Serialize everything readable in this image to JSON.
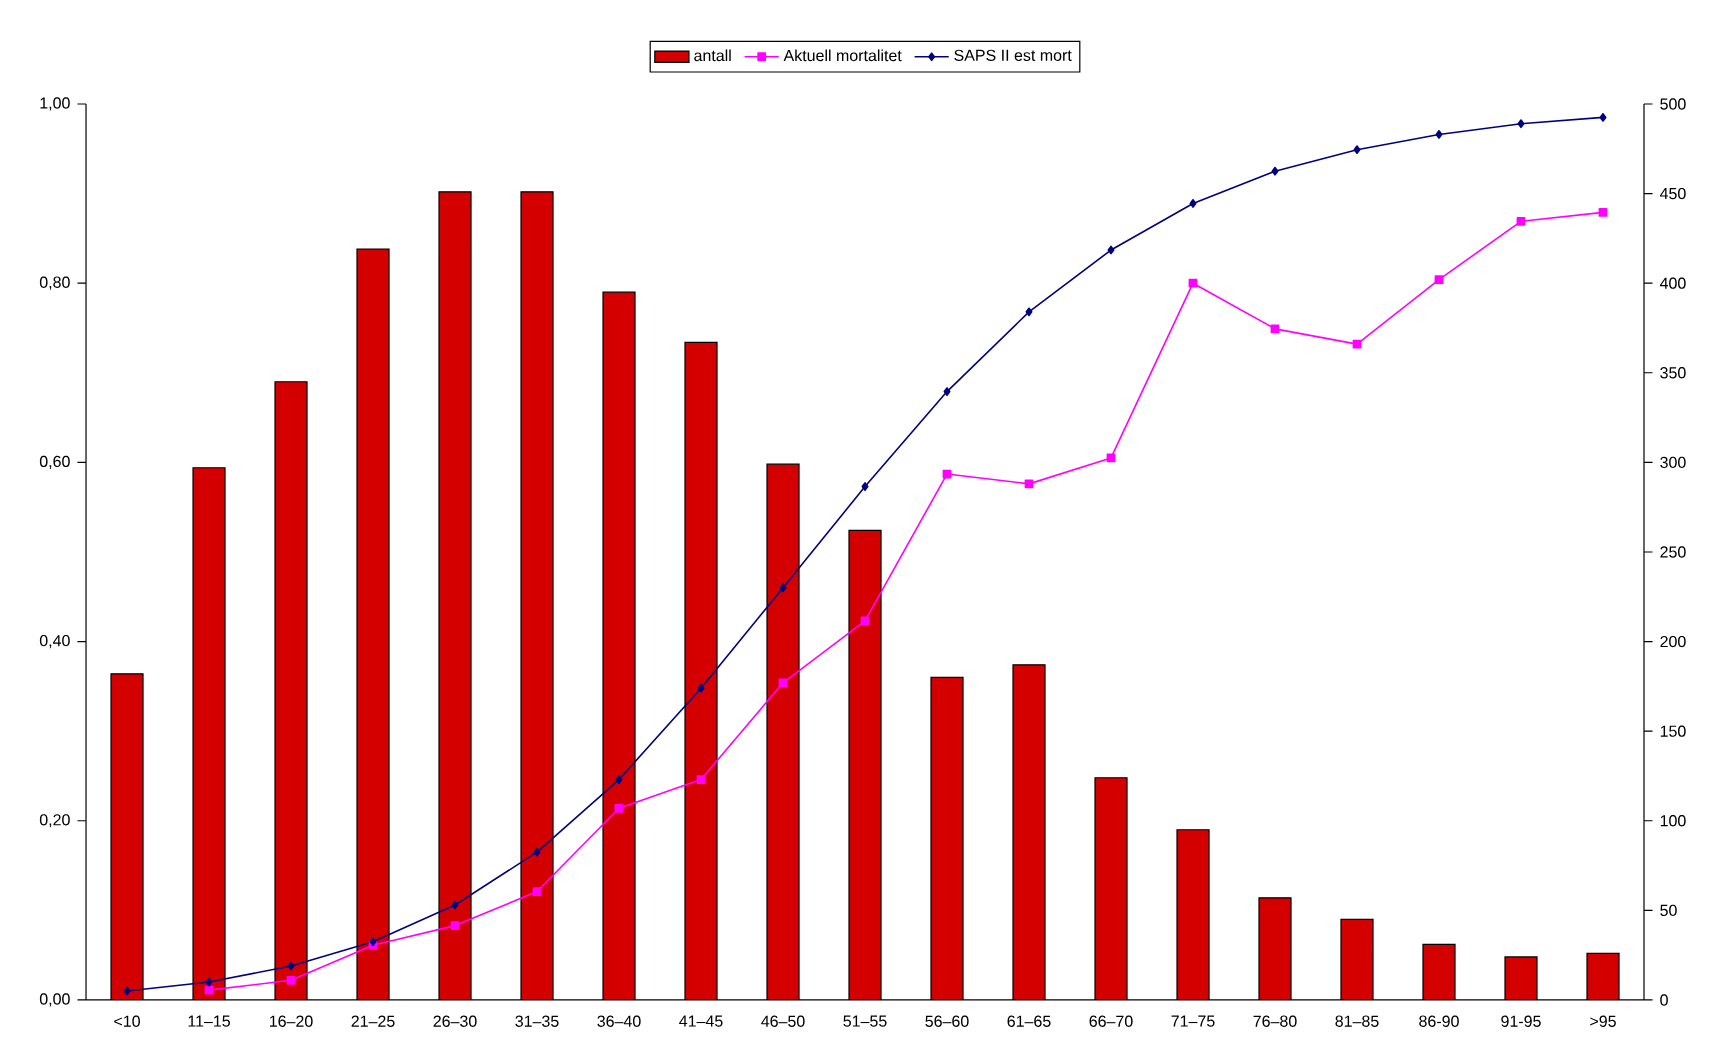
{
  "chart_data": {
    "type": "bar",
    "categories": [
      "<10",
      "11–15",
      "16–20",
      "21–25",
      "26–30",
      "31–35",
      "36–40",
      "41–45",
      "46–50",
      "51–55",
      "56–60",
      "61–65",
      "66–70",
      "71–75",
      "76–80",
      "81–85",
      "86-90",
      "91-95",
      ">95"
    ],
    "series": [
      {
        "name": "antall",
        "axis": "y2",
        "color": "#d40000",
        "values": [
          182,
          297,
          345,
          419,
          451,
          451,
          395,
          367,
          299,
          262,
          180,
          187,
          124,
          95,
          57,
          45,
          31,
          24,
          26
        ]
      },
      {
        "name": "Aktuell mortalitet",
        "type": "line",
        "axis": "y",
        "color": "#ff00ff",
        "marker": "square",
        "values": [
          null,
          0.011,
          0.022,
          0.061,
          0.083,
          0.121,
          0.214,
          0.246,
          0.354,
          0.423,
          0.587,
          0.576,
          0.605,
          0.8,
          0.749,
          0.732,
          0.804,
          0.869,
          0.879
        ]
      },
      {
        "name": "SAPS II est mort",
        "type": "line",
        "axis": "y",
        "color": "#000080",
        "marker": "diamond",
        "values": [
          0.01,
          0.02,
          0.038,
          0.065,
          0.106,
          0.165,
          0.246,
          0.348,
          0.46,
          0.573,
          0.679,
          0.768,
          0.837,
          0.889,
          0.925,
          0.949,
          0.966,
          0.978,
          0.985
        ]
      }
    ],
    "ylim": [
      0,
      1
    ],
    "yticks": [
      {
        "value": 0,
        "label": "0,00"
      },
      {
        "value": 0.2,
        "label": "0,20"
      },
      {
        "value": 0.4,
        "label": "0,40"
      },
      {
        "value": 0.6,
        "label": "0,60"
      },
      {
        "value": 0.8,
        "label": "0,80"
      },
      {
        "value": 1,
        "label": "1,00"
      }
    ],
    "y2lim": [
      0,
      500
    ],
    "y2ticks": [
      0,
      50,
      100,
      150,
      200,
      250,
      300,
      350,
      400,
      450,
      500
    ],
    "legend": "top",
    "grid": false
  }
}
